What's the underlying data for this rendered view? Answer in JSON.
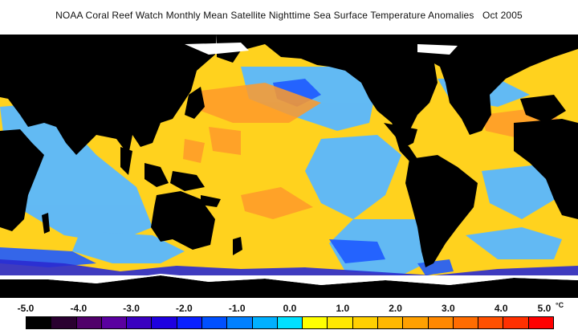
{
  "title": "NOAA Coral Reef Watch Monthly Mean Satellite Nighttime Sea Surface Temperature Anomalies   Oct 2005",
  "colorbar": {
    "labels": [
      "-5.0",
      "-4.0",
      "-3.0",
      "-2.0",
      "-1.0",
      "0.0",
      "1.0",
      "2.0",
      "3.0",
      "4.0",
      "5.0"
    ],
    "unit": "°C",
    "colors": [
      "#000000",
      "#2a0030",
      "#50006a",
      "#5a00a0",
      "#3a00c0",
      "#1e00e0",
      "#0a20ff",
      "#0050ff",
      "#0080ff",
      "#00b0ff",
      "#00e0ff",
      "#ffff00",
      "#ffe800",
      "#ffd000",
      "#ffb800",
      "#ffa000",
      "#ff8800",
      "#ff6c00",
      "#ff5000",
      "#ff3000",
      "#ff0000"
    ]
  },
  "map_legend": {
    "land": "#000000",
    "ice": "#ffffff",
    "no_data": "#c0c0c0",
    "ocean_dominant": [
      "#ffd21e",
      "#ffe100",
      "#64c8ff",
      "#3ca0ff",
      "#ff9a2a"
    ]
  }
}
